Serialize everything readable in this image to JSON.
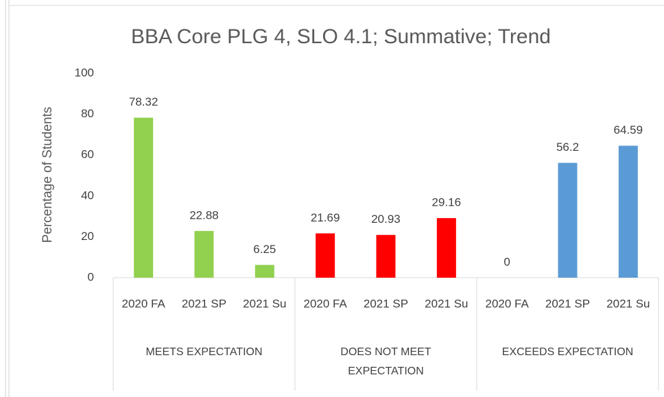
{
  "chart_data": {
    "type": "bar",
    "title": "BBA Core PLG 4, SLO 4.1; Summative; Trend",
    "y_label": "Percentage of Students",
    "categories": [
      "2020 FA",
      "2021 SP",
      "2021 Su"
    ],
    "series": [
      {
        "name": "MEETS EXPECTATION",
        "color": "#92d050",
        "values": [
          78.32,
          22.88,
          6.25
        ]
      },
      {
        "name": "DOES NOT MEET EXPECTATION",
        "color": "#ff0000",
        "values": [
          21.69,
          20.93,
          29.16
        ]
      },
      {
        "name": "EXCEEDS EXPECTATION",
        "color": "#5b9bd5",
        "values": [
          0,
          56.2,
          64.59
        ]
      }
    ],
    "ylim": [
      0,
      100
    ],
    "yticks": [
      0,
      20,
      40,
      60,
      80,
      100
    ],
    "grid": false
  }
}
